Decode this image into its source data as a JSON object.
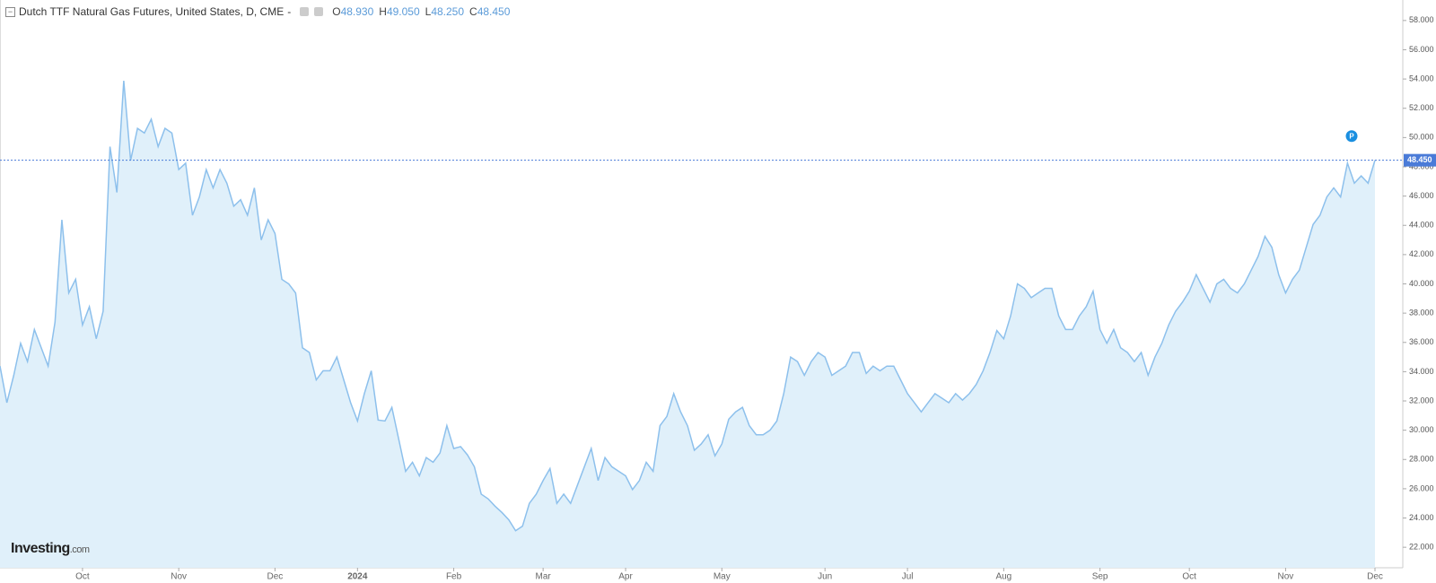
{
  "chart_data": {
    "type": "area",
    "title": "Dutch TTF Natural Gas Futures, United States, D, CME",
    "title_suffix": "-",
    "ohlc": [
      {
        "label": "O",
        "value": "48.930"
      },
      {
        "label": "H",
        "value": "49.050"
      },
      {
        "label": "L",
        "value": "48.250"
      },
      {
        "label": "C",
        "value": "48.450"
      }
    ],
    "color": "#8dc0ec",
    "fill": "#e0f0fa",
    "categories": [
      null,
      null,
      null,
      null,
      null,
      null,
      null,
      null,
      null,
      null,
      null,
      null,
      "Oct",
      null,
      null,
      null,
      null,
      null,
      null,
      null,
      null,
      null,
      null,
      null,
      null,
      null,
      "Nov",
      null,
      null,
      null,
      null,
      null,
      null,
      null,
      null,
      null,
      null,
      null,
      null,
      null,
      "Dec",
      null,
      null,
      null,
      null,
      null,
      null,
      null,
      null,
      null,
      null,
      null,
      "2024",
      null,
      null,
      null,
      null,
      null,
      null,
      null,
      null,
      null,
      null,
      null,
      null,
      null,
      "Feb",
      null,
      null,
      null,
      null,
      null,
      null,
      null,
      null,
      null,
      null,
      null,
      null,
      "Mar",
      null,
      null,
      null,
      null,
      null,
      null,
      null,
      null,
      null,
      null,
      null,
      "Apr",
      null,
      null,
      null,
      null,
      null,
      null,
      null,
      null,
      null,
      null,
      null,
      null,
      null,
      "May",
      null,
      null,
      null,
      null,
      null,
      null,
      null,
      null,
      null,
      null,
      null,
      null,
      null,
      null,
      "Jun",
      null,
      null,
      null,
      null,
      null,
      null,
      null,
      null,
      null,
      null,
      null,
      "Jul",
      null,
      null,
      null,
      null,
      null,
      null,
      null,
      null,
      null,
      null,
      null,
      null,
      null,
      "Aug",
      null,
      null,
      null,
      null,
      null,
      null,
      null,
      null,
      null,
      null,
      null,
      null,
      null,
      "Sep",
      null,
      null,
      null,
      null,
      null,
      null,
      null,
      null,
      null,
      null,
      null,
      null,
      "Oct",
      null,
      null,
      null,
      null,
      null,
      null,
      null,
      null,
      null,
      null,
      null,
      null,
      null,
      "Nov",
      null,
      null,
      null,
      null,
      null,
      null,
      null,
      null,
      null,
      null,
      null,
      null,
      "Dec"
    ],
    "values": [
      34.38,
      31.88,
      33.75,
      35.94,
      34.69,
      36.88,
      35.63,
      34.38,
      37.38,
      44.38,
      39.38,
      40.31,
      37.19,
      38.44,
      36.25,
      38.13,
      49.38,
      46.25,
      53.88,
      48.44,
      50.63,
      50.31,
      51.25,
      49.38,
      50.63,
      50.31,
      47.81,
      48.25,
      44.69,
      45.94,
      47.81,
      46.56,
      47.81,
      46.88,
      45.31,
      45.75,
      44.69,
      46.56,
      43.0,
      44.38,
      43.44,
      40.31,
      40.0,
      39.38,
      35.63,
      35.31,
      33.44,
      34.06,
      34.06,
      35.0,
      33.44,
      31.88,
      30.63,
      32.5,
      34.06,
      30.69,
      30.63,
      31.56,
      29.38,
      27.19,
      27.81,
      26.88,
      28.13,
      27.81,
      28.44,
      30.31,
      28.75,
      28.88,
      28.31,
      27.5,
      25.63,
      25.31,
      24.81,
      24.38,
      23.88,
      23.13,
      23.44,
      25.0,
      25.63,
      26.56,
      27.38,
      25.0,
      25.63,
      25.0,
      26.25,
      27.5,
      28.75,
      26.56,
      28.13,
      27.5,
      27.19,
      26.88,
      25.94,
      26.56,
      27.81,
      27.19,
      30.31,
      30.94,
      32.5,
      31.25,
      30.31,
      28.63,
      29.06,
      29.69,
      28.25,
      29.06,
      30.75,
      31.25,
      31.56,
      30.31,
      29.69,
      29.69,
      30.0,
      30.63,
      32.5,
      35.0,
      34.69,
      33.75,
      34.69,
      35.31,
      35.0,
      33.75,
      34.06,
      34.38,
      35.31,
      35.31,
      33.88,
      34.38,
      34.06,
      34.38,
      34.38,
      33.44,
      32.5,
      31.88,
      31.25,
      31.88,
      32.5,
      32.19,
      31.88,
      32.5,
      32.06,
      32.5,
      33.13,
      34.06,
      35.31,
      36.81,
      36.25,
      37.81,
      40.0,
      39.69,
      39.06,
      39.38,
      39.69,
      39.69,
      37.81,
      36.88,
      36.88,
      37.81,
      38.44,
      39.5,
      36.88,
      35.94,
      36.88,
      35.63,
      35.31,
      34.69,
      35.31,
      33.75,
      35.0,
      35.94,
      37.19,
      38.13,
      38.75,
      39.5,
      40.63,
      39.69,
      38.75,
      40.0,
      40.31,
      39.69,
      39.38,
      40.0,
      40.94,
      41.88,
      43.25,
      42.5,
      40.63,
      39.38,
      40.31,
      40.94,
      42.5,
      44.06,
      44.69,
      45.94,
      46.56,
      45.94,
      48.25,
      46.88,
      47.38,
      46.88,
      48.45
    ],
    "ylim": [
      20.6,
      59.4
    ],
    "yticks": [
      {
        "value": 22,
        "label": "22.000"
      },
      {
        "value": 24,
        "label": "24.000"
      },
      {
        "value": 26,
        "label": "26.000"
      },
      {
        "value": 28,
        "label": "28.000"
      },
      {
        "value": 30,
        "label": "30.000"
      },
      {
        "value": 32,
        "label": "32.000"
      },
      {
        "value": 34,
        "label": "34.000"
      },
      {
        "value": 36,
        "label": "36.000"
      },
      {
        "value": 38,
        "label": "38.000"
      },
      {
        "value": 40,
        "label": "40.000"
      },
      {
        "value": 42,
        "label": "42.000"
      },
      {
        "value": 44,
        "label": "44.000"
      },
      {
        "value": 46,
        "label": "46.000"
      },
      {
        "value": 48,
        "label": "48.000"
      },
      {
        "value": 50,
        "label": "50.000"
      },
      {
        "value": 52,
        "label": "52.000"
      },
      {
        "value": 54,
        "label": "54.000"
      },
      {
        "value": 56,
        "label": "56.000"
      },
      {
        "value": 58,
        "label": "58.000"
      }
    ],
    "price_line": {
      "value": 48.45,
      "label": "48.450",
      "color": "#4a7bd8"
    },
    "marker": {
      "value": 50.1,
      "label": "P"
    },
    "logo": {
      "brand": "Investing",
      "suffix": ".com"
    }
  }
}
